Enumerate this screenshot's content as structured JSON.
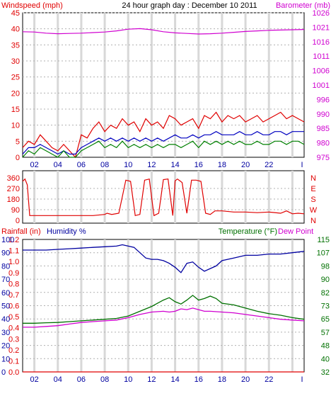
{
  "title": "24 hour graph day : December 10 2011",
  "colors": {
    "wind": "#e00000",
    "gust": "#e00000",
    "avg": "#0000c0",
    "green": "#008000",
    "baro": "#d000d0",
    "humidity": "#0000a0",
    "temp": "#007000",
    "dew": "#d000d0"
  },
  "x_ticks": [
    "02",
    "04",
    "06",
    "08",
    "10",
    "12",
    "14",
    "16",
    "18",
    "20",
    "22"
  ],
  "x_end_tick": "I",
  "panels": {
    "wind": {
      "left_label": "Windspeed (mph)",
      "right_label": "Barometer (mb)",
      "left_ticks": [
        "0",
        "5",
        "10",
        "15",
        "20",
        "25",
        "30",
        "35",
        "40",
        "45"
      ],
      "right_ticks": [
        "975",
        "980",
        "985",
        "990",
        "996",
        "1001",
        "1006",
        "1011",
        "1016",
        "1021",
        "1026"
      ]
    },
    "direction": {
      "left_ticks": [
        "0",
        "90",
        "180",
        "270",
        "360"
      ],
      "right_ticks": [
        "N",
        "E",
        "S",
        "W",
        "N"
      ]
    },
    "thp": {
      "rain_label": "Rainfall (in)",
      "humidity_label": "Humidity %",
      "temp_label": "Temperature (°F)",
      "dew_label": "Dew Point",
      "rain_ticks": [
        "0.0",
        "0.1",
        "0.2",
        "0.3",
        "0.4",
        "0.5",
        "0.6",
        "0.7",
        "0.8",
        "0.9",
        "1.0",
        "1.1",
        "1.2"
      ],
      "hum_ticks": [
        "0",
        "10",
        "20",
        "30",
        "40",
        "50",
        "60",
        "70",
        "80",
        "90",
        "100"
      ],
      "temp_ticks": [
        "32",
        "40",
        "48",
        "57",
        "65",
        "73",
        "82",
        "90",
        "98",
        "107",
        "115"
      ]
    }
  },
  "chart_data": [
    {
      "type": "line",
      "title": "24 hour graph day : December 10 2011",
      "ylabel": "Windspeed (mph)",
      "y2label": "Barometer (mb)",
      "xlim": [
        0,
        24
      ],
      "ylim": [
        0,
        45
      ],
      "y2lim": [
        975,
        1026
      ],
      "series": [
        {
          "axis": "left",
          "color": "#e00000",
          "x": [
            0,
            0.5,
            1,
            1.5,
            2,
            2.5,
            3,
            3.5,
            4,
            4.5,
            5,
            5.5,
            6,
            6.5,
            7,
            7.5,
            8,
            8.5,
            9,
            9.5,
            10,
            10.5,
            11,
            11.5,
            12,
            12.5,
            13,
            13.5,
            14,
            14.5,
            15,
            15.5,
            16,
            16.5,
            17,
            17.5,
            18,
            18.5,
            19,
            19.5,
            20,
            20.5,
            21,
            21.5,
            22,
            22.5,
            23,
            23.5,
            24
          ],
          "y": [
            3,
            5,
            4,
            7,
            5,
            3,
            2,
            4,
            2,
            0,
            7,
            6,
            9,
            11,
            8,
            10,
            9,
            12,
            10,
            11,
            8,
            12,
            10,
            11,
            9,
            13,
            12,
            10,
            11,
            12,
            9,
            13,
            12,
            14,
            11,
            13,
            12,
            13,
            11,
            12,
            13,
            11,
            12,
            13,
            14,
            12,
            13,
            12,
            11
          ]
        },
        {
          "axis": "left",
          "color": "#0000c0",
          "x": [
            0,
            0.5,
            1,
            1.5,
            2,
            2.5,
            3,
            3.5,
            4,
            4.5,
            5,
            5.5,
            6,
            6.5,
            7,
            7.5,
            8,
            8.5,
            9,
            9.5,
            10,
            10.5,
            11,
            11.5,
            12,
            12.5,
            13,
            13.5,
            14,
            14.5,
            15,
            15.5,
            16,
            16.5,
            17,
            17.5,
            18,
            18.5,
            19,
            19.5,
            20,
            20.5,
            21,
            21.5,
            22,
            22.5,
            23,
            23.5,
            24
          ],
          "y": [
            1,
            3,
            3,
            4,
            3,
            2,
            1,
            2,
            1,
            1,
            3,
            4,
            5,
            6,
            5,
            6,
            5,
            6,
            5,
            6,
            5,
            6,
            5,
            6,
            5,
            6,
            7,
            6,
            6,
            7,
            6,
            7,
            7,
            8,
            7,
            7,
            7,
            8,
            7,
            7,
            8,
            7,
            7,
            8,
            8,
            7,
            8,
            8,
            8
          ]
        },
        {
          "axis": "left",
          "color": "#008000",
          "x": [
            0,
            0.5,
            1,
            1.5,
            2,
            2.5,
            3,
            3.5,
            4,
            4.5,
            5,
            5.5,
            6,
            6.5,
            7,
            7.5,
            8,
            8.5,
            9,
            9.5,
            10,
            10.5,
            11,
            11.5,
            12,
            12.5,
            13,
            13.5,
            14,
            14.5,
            15,
            15.5,
            16,
            16.5,
            17,
            17.5,
            18,
            18.5,
            19,
            19.5,
            20,
            20.5,
            21,
            21.5,
            22,
            22.5,
            23,
            23.5,
            24
          ],
          "y": [
            0,
            2,
            1,
            3,
            2,
            1,
            0,
            2,
            0,
            0,
            2,
            3,
            4,
            5,
            3,
            4,
            3,
            5,
            3,
            4,
            3,
            4,
            3,
            4,
            3,
            4,
            4,
            3,
            4,
            5,
            3,
            5,
            4,
            5,
            4,
            5,
            4,
            5,
            4,
            4,
            5,
            4,
            4,
            5,
            5,
            4,
            5,
            5,
            4
          ]
        },
        {
          "axis": "right",
          "color": "#d000d0",
          "x": [
            0,
            1,
            2,
            3,
            4,
            5,
            6,
            7,
            8,
            9,
            10,
            11,
            12,
            13,
            14,
            15,
            16,
            17,
            18,
            19,
            20,
            21,
            22,
            23,
            24
          ],
          "y": [
            1019.3,
            1019.2,
            1018.8,
            1018.6,
            1018.7,
            1018.8,
            1019.0,
            1019.2,
            1019.6,
            1020.2,
            1020.4,
            1020.0,
            1019.3,
            1018.9,
            1018.7,
            1018.5,
            1018.6,
            1018.8,
            1019.1,
            1019.4,
            1019.6,
            1019.8,
            1019.9,
            1020.0,
            1020.1
          ]
        }
      ]
    },
    {
      "type": "line",
      "ylabel": "",
      "xlim": [
        0,
        24
      ],
      "ylim": [
        0,
        360
      ],
      "series": [
        {
          "color": "#e00000",
          "x": [
            0,
            0.2,
            0.4,
            0.6,
            1,
            2,
            3,
            4,
            5,
            6,
            7,
            7.2,
            7.6,
            8.2,
            8.8,
            9.2,
            9.6,
            10,
            10.4,
            10.8,
            11.2,
            11.6,
            12,
            12.4,
            12.8,
            13,
            13.2,
            13.6,
            14,
            14.4,
            14.8,
            15.2,
            15.6,
            16,
            16.4,
            17,
            18,
            19,
            20,
            21,
            22,
            22.5,
            23,
            23.5,
            24
          ],
          "y": [
            330,
            350,
            300,
            40,
            40,
            40,
            40,
            40,
            40,
            40,
            50,
            60,
            50,
            60,
            340,
            330,
            40,
            50,
            340,
            350,
            40,
            60,
            345,
            350,
            40,
            335,
            350,
            320,
            60,
            340,
            340,
            330,
            60,
            50,
            80,
            80,
            70,
            70,
            65,
            70,
            60,
            80,
            55,
            60,
            55
          ]
        }
      ]
    },
    {
      "type": "line",
      "ylabel": "Rainfall (in)",
      "y2label": "Temperature (°F)",
      "xlim": [
        0,
        24
      ],
      "ylim": [
        0,
        1.2
      ],
      "y2lim": [
        32,
        115
      ],
      "series": [
        {
          "axis": "rain",
          "color": "#e00000",
          "x": [
            0,
            24
          ],
          "y": [
            0.0,
            0.0
          ]
        },
        {
          "axis": "humidity",
          "color": "#0000a0",
          "x": [
            0,
            1,
            2,
            3,
            4,
            5,
            6,
            7,
            8,
            8.5,
            9,
            9.5,
            10,
            10.5,
            11,
            11.5,
            12,
            12.5,
            13,
            13.5,
            14,
            14.5,
            15,
            15.5,
            16,
            16.5,
            17,
            18,
            19,
            20,
            21,
            22,
            23,
            24
          ],
          "y": [
            92,
            92,
            92,
            92.5,
            93,
            93.5,
            94,
            94.5,
            95,
            96,
            95,
            94,
            90,
            86,
            85,
            85,
            84,
            82,
            79,
            75,
            82,
            83,
            79,
            76,
            78,
            80,
            84,
            86,
            88,
            88,
            89,
            89,
            90,
            91
          ]
        },
        {
          "axis": "temp",
          "color": "#007000",
          "x": [
            0,
            1,
            2,
            3,
            4,
            5,
            6,
            7,
            8,
            9,
            10,
            11,
            11.5,
            12,
            12.5,
            13,
            13.5,
            14,
            14.5,
            15,
            15.5,
            16,
            16.5,
            17,
            18,
            19,
            20,
            21,
            22,
            23,
            24
          ],
          "y": [
            62.5,
            62.5,
            62.8,
            63,
            63.5,
            64,
            64.5,
            65,
            65.5,
            67,
            70,
            73,
            75,
            77,
            78.5,
            76,
            74.5,
            77,
            80,
            77,
            78,
            79.5,
            78,
            75,
            74,
            72,
            70,
            68.5,
            67.5,
            66,
            65
          ]
        },
        {
          "axis": "temp",
          "color": "#d000d0",
          "x": [
            0,
            1,
            2,
            3,
            4,
            5,
            6,
            7,
            8,
            9,
            10,
            11,
            12,
            12.5,
            13,
            13.5,
            14,
            14.5,
            15,
            15.5,
            16,
            17,
            18,
            19,
            20,
            21,
            22,
            23,
            24
          ],
          "y": [
            60,
            60,
            60.5,
            61,
            62,
            63,
            63.5,
            64,
            64.5,
            66,
            68,
            69.5,
            70,
            69.5,
            70,
            71.5,
            71,
            72,
            71,
            70,
            70,
            69.5,
            69,
            68,
            67,
            66,
            65,
            64.5,
            64
          ]
        }
      ]
    }
  ]
}
